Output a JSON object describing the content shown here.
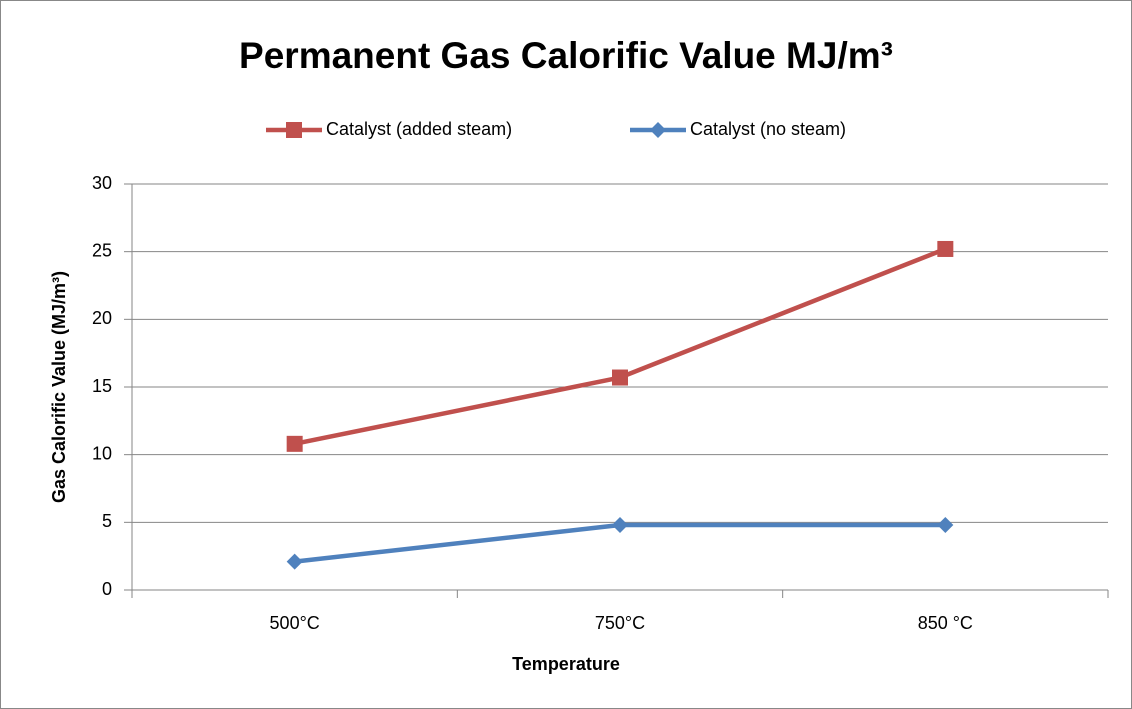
{
  "chart_data": {
    "type": "line",
    "title": "Permanent Gas Calorific Value MJ/m³",
    "x_label": "Temperature",
    "y_label": "Gas Calorific Value (MJ/m³)",
    "categories": [
      "500°C",
      "750°C",
      "850 °C"
    ],
    "series": [
      {
        "name": "Catalyst (added steam)",
        "color": "#c0504d",
        "marker": "square",
        "values": [
          10.8,
          15.7,
          25.2
        ]
      },
      {
        "name": "Catalyst (no steam)",
        "color": "#4f81bd",
        "marker": "diamond",
        "values": [
          2.1,
          4.8,
          4.8
        ]
      }
    ],
    "ylim": [
      0,
      30
    ],
    "yticks": [
      0,
      5,
      10,
      15,
      20,
      25,
      30
    ],
    "grid": true,
    "legend": "top"
  }
}
